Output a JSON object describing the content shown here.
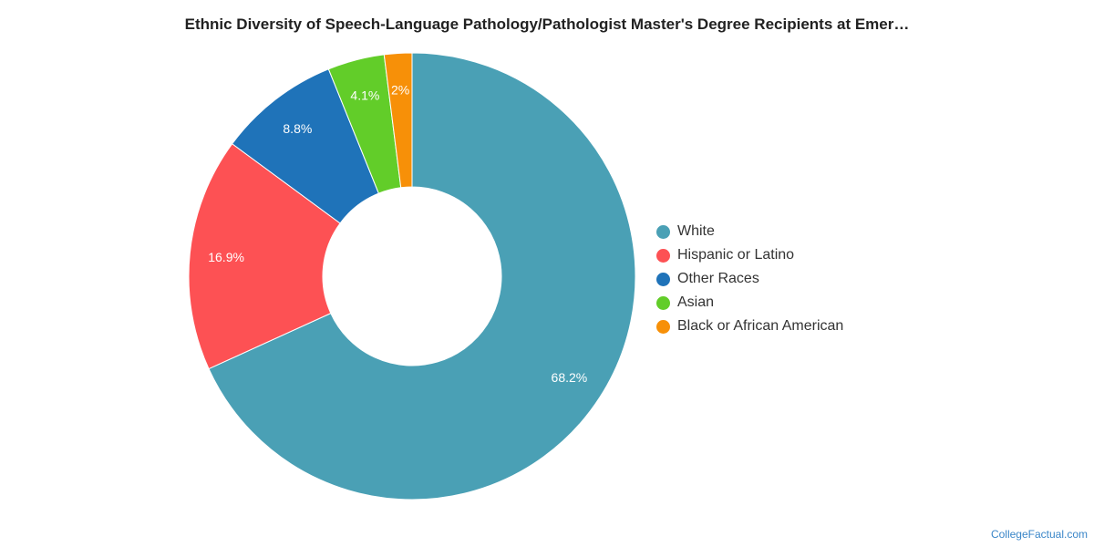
{
  "title": "Ethnic Diversity of Speech-Language Pathology/Pathologist Master's Degree Recipients at Emer…",
  "credit": "CollegeFactual.com",
  "chart_data": {
    "type": "pie",
    "variant": "donut",
    "title": "Ethnic Diversity of Speech-Language Pathology/Pathologist Master's Degree Recipients at Emer…",
    "legend_position": "right",
    "slices": [
      {
        "name": "White",
        "value": 68.2,
        "label": "68.2%",
        "color": "#4aa0b5"
      },
      {
        "name": "Hispanic or Latino",
        "value": 16.9,
        "label": "16.9%",
        "color": "#fd5154"
      },
      {
        "name": "Other Races",
        "value": 8.8,
        "label": "8.8%",
        "color": "#1f73b9"
      },
      {
        "name": "Asian",
        "value": 4.1,
        "label": "4.1%",
        "color": "#62cd29"
      },
      {
        "name": "Black or African American",
        "value": 2.0,
        "label": "2%",
        "color": "#f79008"
      }
    ]
  }
}
